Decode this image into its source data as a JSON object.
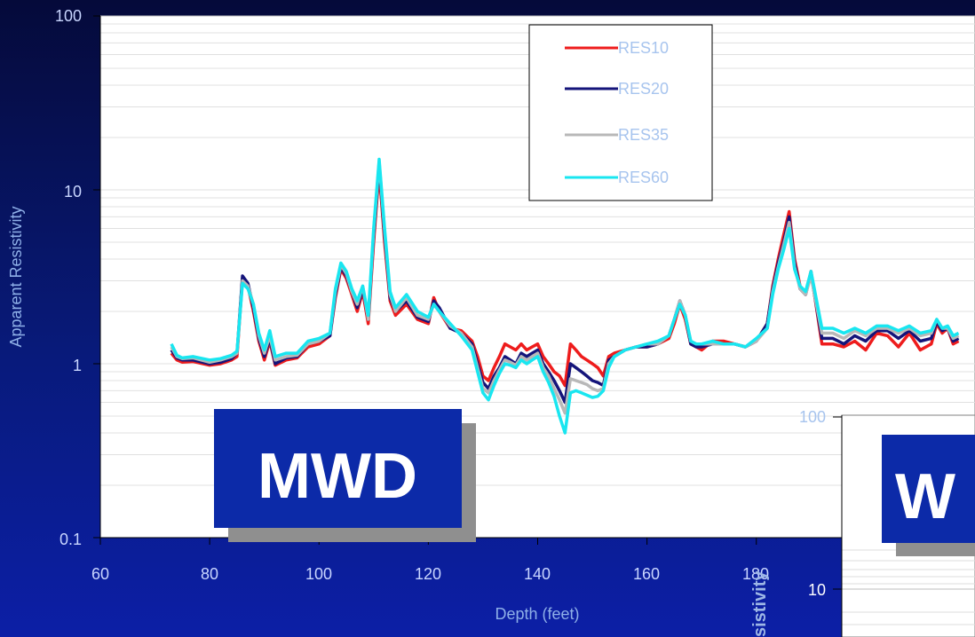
{
  "chart_data": {
    "type": "line",
    "title": "",
    "xlabel": "Depth (feet)",
    "ylabel": "Apparent Resistivity",
    "xlim": [
      60,
      220
    ],
    "ylim": [
      0.1,
      100
    ],
    "yscale": "log",
    "x_ticks": [
      "60",
      "80",
      "100",
      "120",
      "140",
      "160",
      "180"
    ],
    "y_ticks": [
      "0.1",
      "1",
      "10",
      "100"
    ],
    "grid": true,
    "legend_position": "top-right",
    "series_colors": {
      "RES10": "#ee1c1c",
      "RES20": "#14147a",
      "RES35": "#b8b8b8",
      "RES60": "#19e6f0"
    },
    "x": [
      73,
      74,
      75,
      77,
      80,
      82,
      84,
      85,
      86,
      87,
      88,
      89,
      90,
      91,
      92,
      94,
      96,
      98,
      100,
      102,
      103,
      104,
      105,
      106,
      107,
      108,
      109,
      110,
      111,
      112,
      113,
      114,
      116,
      118,
      120,
      121,
      122,
      124,
      126,
      128,
      129,
      130,
      131,
      132,
      133,
      134,
      135,
      136,
      137,
      138,
      139,
      140,
      141,
      142,
      143,
      144,
      145,
      146,
      147,
      148,
      149,
      150,
      151,
      152,
      153,
      154,
      156,
      158,
      160,
      162,
      164,
      165,
      166,
      167,
      168,
      169,
      170,
      172,
      174,
      176,
      178,
      180,
      182,
      183,
      184,
      185,
      186,
      187,
      188,
      189,
      190,
      192,
      194,
      196,
      198,
      200,
      202,
      204,
      206,
      208,
      210,
      212,
      213,
      214,
      215,
      216,
      217
    ],
    "series": [
      {
        "name": "RES10",
        "values": [
          1.15,
          1.05,
          1.02,
          1.03,
          0.98,
          1.0,
          1.05,
          1.1,
          3.1,
          2.8,
          2.0,
          1.35,
          1.05,
          1.35,
          0.98,
          1.05,
          1.08,
          1.25,
          1.3,
          1.45,
          2.4,
          3.5,
          3.1,
          2.5,
          2.0,
          2.6,
          1.7,
          5.0,
          13.0,
          5.0,
          2.3,
          1.9,
          2.2,
          1.8,
          1.7,
          2.4,
          2.0,
          1.6,
          1.55,
          1.35,
          1.1,
          0.85,
          0.8,
          0.95,
          1.1,
          1.3,
          1.25,
          1.2,
          1.3,
          1.2,
          1.25,
          1.3,
          1.1,
          1.0,
          0.9,
          0.85,
          0.75,
          1.3,
          1.2,
          1.1,
          1.05,
          1.0,
          0.95,
          0.85,
          1.1,
          1.15,
          1.2,
          1.25,
          1.25,
          1.3,
          1.4,
          1.7,
          2.2,
          1.8,
          1.3,
          1.25,
          1.2,
          1.35,
          1.35,
          1.3,
          1.25,
          1.35,
          1.7,
          2.8,
          4.0,
          5.5,
          7.5,
          4.0,
          2.8,
          2.5,
          3.4,
          1.3,
          1.3,
          1.25,
          1.35,
          1.2,
          1.5,
          1.45,
          1.25,
          1.5,
          1.2,
          1.3,
          1.7,
          1.5,
          1.6,
          1.3,
          1.35
        ]
      },
      {
        "name": "RES20",
        "values": [
          1.2,
          1.08,
          1.05,
          1.05,
          1.0,
          1.02,
          1.07,
          1.15,
          3.2,
          2.9,
          2.1,
          1.4,
          1.1,
          1.4,
          1.0,
          1.08,
          1.1,
          1.3,
          1.35,
          1.45,
          2.5,
          3.6,
          3.2,
          2.6,
          2.1,
          2.7,
          1.8,
          5.5,
          14.0,
          5.5,
          2.4,
          2.0,
          2.3,
          1.85,
          1.75,
          2.3,
          2.1,
          1.6,
          1.5,
          1.3,
          1.0,
          0.78,
          0.72,
          0.85,
          0.95,
          1.1,
          1.05,
          1.0,
          1.15,
          1.1,
          1.15,
          1.2,
          1.0,
          0.9,
          0.8,
          0.7,
          0.6,
          1.0,
          0.95,
          0.9,
          0.85,
          0.8,
          0.78,
          0.75,
          1.05,
          1.1,
          1.2,
          1.25,
          1.25,
          1.3,
          1.45,
          1.8,
          2.3,
          1.9,
          1.3,
          1.25,
          1.25,
          1.3,
          1.3,
          1.3,
          1.25,
          1.35,
          1.7,
          2.7,
          3.8,
          5.0,
          7.0,
          3.8,
          2.7,
          2.5,
          3.3,
          1.4,
          1.4,
          1.3,
          1.45,
          1.35,
          1.55,
          1.55,
          1.4,
          1.55,
          1.35,
          1.4,
          1.75,
          1.55,
          1.6,
          1.35,
          1.4
        ]
      },
      {
        "name": "RES35",
        "values": [
          1.25,
          1.1,
          1.07,
          1.08,
          1.02,
          1.05,
          1.1,
          1.15,
          3.0,
          2.8,
          2.2,
          1.45,
          1.15,
          1.45,
          1.05,
          1.1,
          1.12,
          1.3,
          1.35,
          1.5,
          2.6,
          3.7,
          3.3,
          2.6,
          2.2,
          2.8,
          1.8,
          5.8,
          14.5,
          5.8,
          2.5,
          2.0,
          2.4,
          1.9,
          1.8,
          2.2,
          2.0,
          1.65,
          1.5,
          1.25,
          0.95,
          0.72,
          0.68,
          0.8,
          0.92,
          1.05,
          1.02,
          0.98,
          1.1,
          1.05,
          1.1,
          1.15,
          0.95,
          0.85,
          0.72,
          0.62,
          0.52,
          0.82,
          0.8,
          0.78,
          0.76,
          0.72,
          0.7,
          0.72,
          1.0,
          1.1,
          1.2,
          1.25,
          1.3,
          1.3,
          1.45,
          1.8,
          2.3,
          1.9,
          1.35,
          1.3,
          1.3,
          1.3,
          1.3,
          1.3,
          1.25,
          1.35,
          1.6,
          2.6,
          3.6,
          4.8,
          6.5,
          3.6,
          2.7,
          2.5,
          3.2,
          1.5,
          1.5,
          1.4,
          1.55,
          1.45,
          1.6,
          1.6,
          1.5,
          1.6,
          1.45,
          1.5,
          1.8,
          1.6,
          1.6,
          1.4,
          1.45
        ]
      },
      {
        "name": "RES60",
        "values": [
          1.3,
          1.12,
          1.08,
          1.1,
          1.05,
          1.07,
          1.12,
          1.18,
          2.9,
          2.7,
          2.2,
          1.5,
          1.2,
          1.55,
          1.1,
          1.15,
          1.15,
          1.35,
          1.4,
          1.5,
          2.7,
          3.8,
          3.4,
          2.7,
          2.3,
          2.8,
          1.9,
          6.0,
          15.0,
          6.0,
          2.6,
          2.1,
          2.5,
          2.0,
          1.85,
          2.2,
          2.0,
          1.7,
          1.45,
          1.2,
          0.9,
          0.68,
          0.62,
          0.75,
          0.88,
          1.0,
          0.98,
          0.95,
          1.05,
          1.0,
          1.05,
          1.1,
          0.9,
          0.78,
          0.65,
          0.5,
          0.4,
          0.68,
          0.7,
          0.68,
          0.66,
          0.64,
          0.65,
          0.7,
          0.95,
          1.1,
          1.2,
          1.25,
          1.3,
          1.35,
          1.45,
          1.8,
          2.2,
          1.9,
          1.35,
          1.3,
          1.3,
          1.35,
          1.3,
          1.3,
          1.25,
          1.4,
          1.6,
          2.5,
          3.5,
          4.5,
          6.0,
          3.5,
          2.8,
          2.6,
          3.4,
          1.6,
          1.6,
          1.5,
          1.6,
          1.5,
          1.65,
          1.65,
          1.55,
          1.65,
          1.5,
          1.55,
          1.8,
          1.6,
          1.65,
          1.45,
          1.5
        ]
      }
    ]
  },
  "badges": {
    "mwd_text": "MWD",
    "second_text": "W"
  },
  "inset": {
    "y_ticks": [
      "100",
      "10"
    ],
    "ylabel_fragment": "sistivity",
    "partial_tick": "180"
  }
}
